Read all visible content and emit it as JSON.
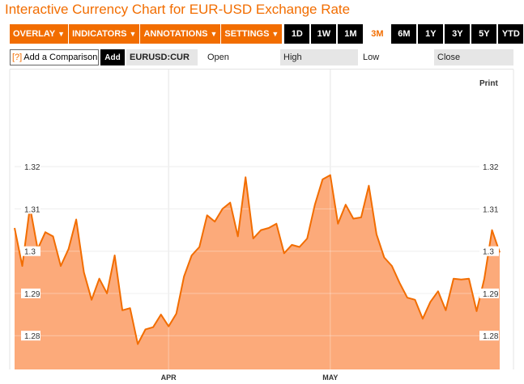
{
  "header": {
    "title": "Interactive Currency Chart for EUR-USD Exchange Rate"
  },
  "toolbar": {
    "menus": [
      "OVERLAY",
      "INDICATORS",
      "ANNOTATIONS",
      "SETTINGS"
    ],
    "ranges": [
      "1D",
      "1W",
      "1M",
      "3M",
      "6M",
      "1Y",
      "3Y",
      "5Y",
      "YTD"
    ],
    "active_range": "3M"
  },
  "comparison": {
    "icon": "[?]",
    "label": "Add a Comparison",
    "add_label": "Add"
  },
  "quote": {
    "symbol": "EURUSD:CUR",
    "open_label": "Open",
    "open_value": "",
    "high_label": "High",
    "high_value": "",
    "low_label": "Low",
    "low_value": "",
    "close_label": "Close",
    "close_value": ""
  },
  "print_label": "Print",
  "colors": {
    "accent": "#f26d00",
    "area_fill": "#fcaa7a",
    "line": "#f26d00"
  },
  "chart_data": {
    "type": "area",
    "x_labels": [
      "APR",
      "MAY"
    ],
    "y_ticks": [
      "1.32",
      "1.31",
      "1.3",
      "1.29",
      "1.28"
    ],
    "ylim": [
      1.272,
      1.343
    ],
    "grid": true,
    "values": [
      1.3055,
      1.2965,
      1.3105,
      1.3005,
      1.3045,
      1.3035,
      1.2965,
      1.3005,
      1.3075,
      1.295,
      1.2885,
      1.2935,
      1.29,
      1.299,
      1.286,
      1.2865,
      1.278,
      1.2815,
      1.282,
      1.285,
      1.2822,
      1.2852,
      1.294,
      1.299,
      1.301,
      1.3085,
      1.307,
      1.31,
      1.3115,
      1.3035,
      1.3175,
      1.303,
      1.305,
      1.3055,
      1.3065,
      1.2995,
      1.3015,
      1.301,
      1.303,
      1.311,
      1.317,
      1.318,
      1.3065,
      1.311,
      1.3077,
      1.308,
      1.3155,
      1.304,
      1.2985,
      1.2965,
      1.2925,
      1.289,
      1.2885,
      1.284,
      1.288,
      1.2905,
      1.286,
      1.2935,
      1.2933,
      1.2935,
      1.2858,
      1.2935,
      1.305,
      1.2997
    ],
    "apr_index": 20,
    "may_index": 41
  }
}
